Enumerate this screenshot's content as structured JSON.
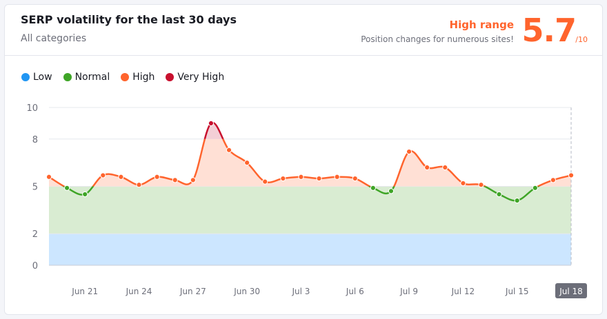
{
  "header": {
    "title": "SERP volatility for the last 30 days",
    "subtitle": "All categories",
    "range_title": "High range",
    "range_desc": "Position changes for numerous sites!",
    "score": "5.7",
    "score_max": "/10"
  },
  "legend": [
    {
      "label": "Low",
      "color": "#2196f3"
    },
    {
      "label": "Normal",
      "color": "#3fa527"
    },
    {
      "label": "High",
      "color": "#ff642d"
    },
    {
      "label": "Very High",
      "color": "#c8102e"
    }
  ],
  "colors": {
    "low": "#2196f3",
    "normal": "#3fa527",
    "high": "#ff642d",
    "very_high": "#c8102e",
    "band_low": "#cce6ff",
    "band_normal": "#d9ecd2",
    "band_high": "#ffe0d5",
    "band_very_high": "#f3cfd6"
  },
  "chart_data": {
    "type": "area",
    "title": "SERP volatility for the last 30 days",
    "ylim": [
      0,
      10
    ],
    "y_ticks": [
      0,
      2,
      5,
      8,
      10
    ],
    "bands": [
      {
        "name": "Low",
        "from": 0,
        "to": 2
      },
      {
        "name": "Normal",
        "from": 2,
        "to": 5
      },
      {
        "name": "High",
        "from": 5,
        "to": 8
      },
      {
        "name": "Very High",
        "from": 8,
        "to": 10
      }
    ],
    "x_labels": [
      "Jun 21",
      "Jun 24",
      "Jun 27",
      "Jun 30",
      "Jul 3",
      "Jul 6",
      "Jul 9",
      "Jul 12",
      "Jul 15",
      "Jul 18"
    ],
    "x_label_index": [
      2,
      5,
      8,
      11,
      14,
      17,
      20,
      23,
      26,
      29
    ],
    "active_label": "Jul 18",
    "dates": [
      "Jun 19",
      "Jun 20",
      "Jun 21",
      "Jun 22",
      "Jun 23",
      "Jun 24",
      "Jun 25",
      "Jun 26",
      "Jun 27",
      "Jun 28",
      "Jun 29",
      "Jun 30",
      "Jul 1",
      "Jul 2",
      "Jul 3",
      "Jul 4",
      "Jul 5",
      "Jul 6",
      "Jul 7",
      "Jul 8",
      "Jul 9",
      "Jul 10",
      "Jul 11",
      "Jul 12",
      "Jul 13",
      "Jul 14",
      "Jul 15",
      "Jul 16",
      "Jul 17",
      "Jul 18"
    ],
    "values": [
      5.6,
      4.9,
      4.5,
      5.7,
      5.6,
      5.1,
      5.6,
      5.4,
      5.4,
      9.0,
      7.3,
      6.5,
      5.3,
      5.5,
      5.6,
      5.5,
      5.6,
      5.5,
      4.9,
      4.7,
      7.2,
      6.2,
      6.2,
      5.2,
      5.1,
      4.5,
      4.1,
      4.9,
      5.4,
      5.7
    ]
  }
}
